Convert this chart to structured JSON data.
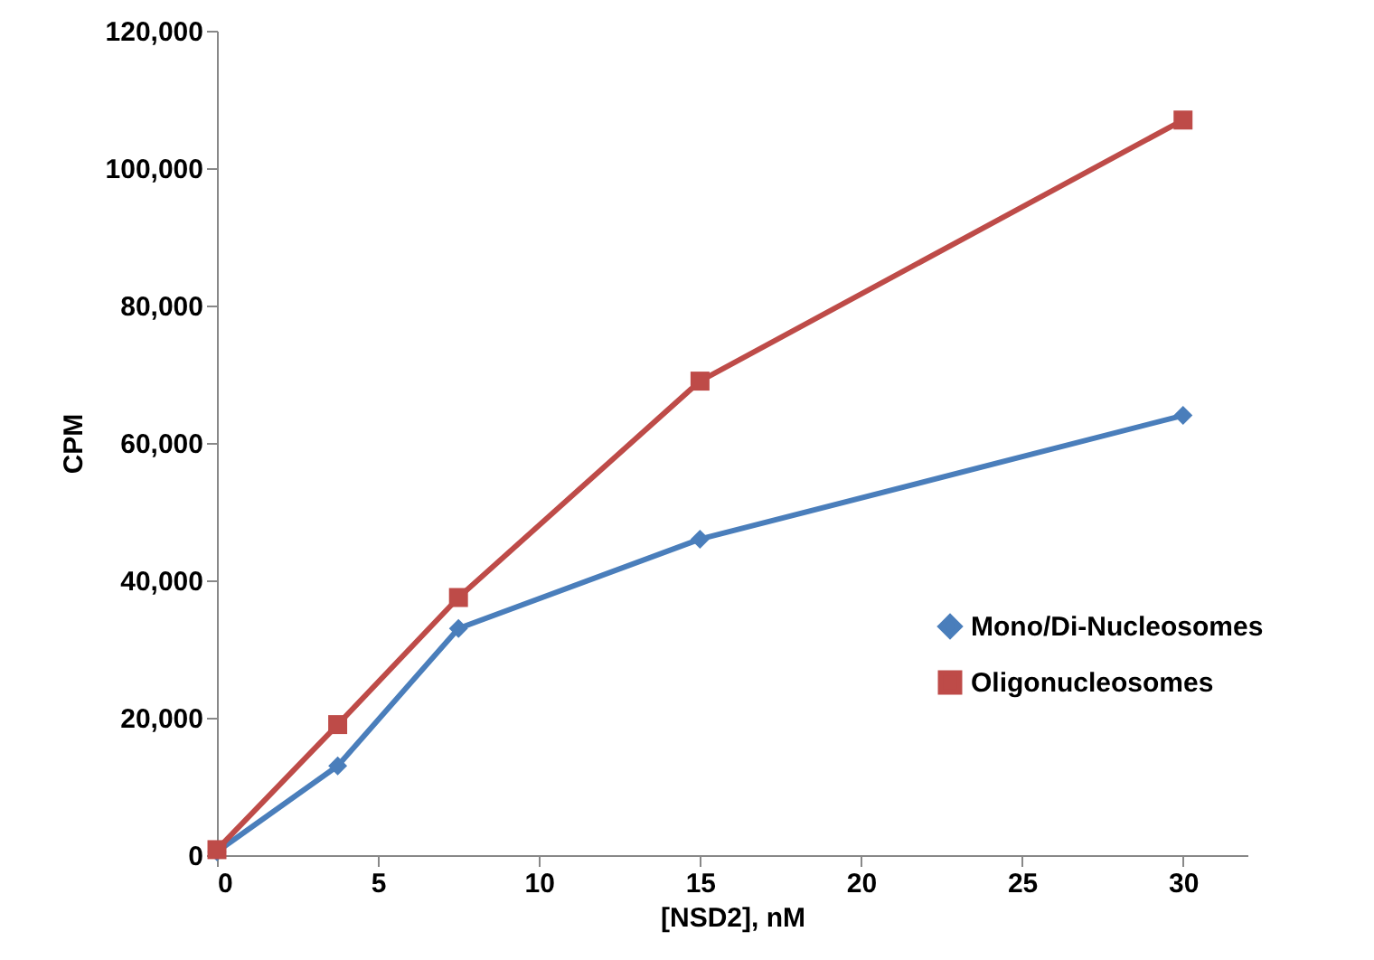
{
  "chart_data": {
    "type": "line",
    "xlabel": "[NSD2], nM",
    "ylabel": "CPM",
    "x": [
      0,
      3.75,
      7.5,
      15,
      30
    ],
    "series": [
      {
        "name": "Mono/Di-Nucleosomes",
        "color": "#4a7ebb",
        "marker": "diamond",
        "values": [
          500,
          13000,
          33000,
          46000,
          64000
        ]
      },
      {
        "name": "Oligonucleosomes",
        "color": "#be4b48",
        "marker": "square",
        "values": [
          800,
          19000,
          37500,
          69000,
          107000
        ]
      }
    ],
    "xlim": [
      0,
      32
    ],
    "xticks": [
      0,
      5,
      10,
      15,
      20,
      25,
      30
    ],
    "ylim": [
      0,
      120000
    ],
    "yticks": [
      0,
      {
        "value": 20000,
        "label": "20,000"
      },
      {
        "value": 40000,
        "label": "40,000"
      },
      {
        "value": 60000,
        "label": "60,000"
      },
      {
        "value": 80000,
        "label": "80,000"
      },
      {
        "value": 100000,
        "label": "100,000"
      },
      {
        "value": 120000,
        "label": "120,000"
      }
    ],
    "grid": false,
    "legend": "right",
    "line_style": "solid"
  }
}
